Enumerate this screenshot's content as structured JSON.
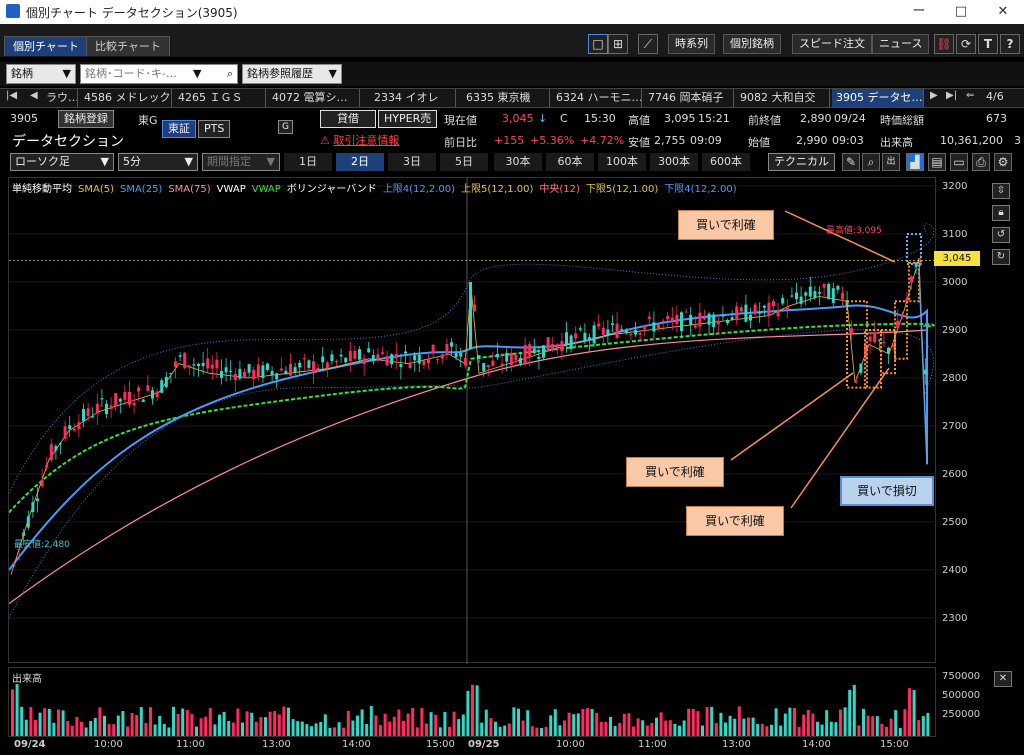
{
  "window": {
    "title": "個別チャート データセクション(3905)",
    "min": "ー",
    "max": "□",
    "close": "✕"
  },
  "tabs": {
    "main": "個別チャート",
    "compare": "比較チャート"
  },
  "toolbar": {
    "jikeiretsu": "時系列",
    "kobetsu": "個別銘柄",
    "speed": "スピード注文",
    "news": "ニュース",
    "T": "T",
    "help": "?"
  },
  "search": {
    "type": "銘柄",
    "placeholder": "銘柄･コード･キ-…",
    "history": "銘柄参照履歴"
  },
  "stocks": [
    "ラウ…",
    "4586 メドレック",
    "4265 ＩＧＳ",
    "4072 電算シ…",
    "2334 イオレ",
    "6335 東京機",
    "6324 ハーモニ…",
    "7746 岡本硝子",
    "9082 大和自交",
    "3905 データセ…"
  ],
  "stock_page": "4/6",
  "info": {
    "code": "3905",
    "register": "銘柄登録",
    "market_short": "東G",
    "name": "データセクション",
    "tosho": "東証",
    "pts": "PTS",
    "g": "G",
    "taishaku": "貸借",
    "hyper": "HYPER売",
    "caution": "取引注意情報",
    "genzai_label": "現在値",
    "genzai": "3,045",
    "arrow": "↓",
    "c": "C",
    "time": "15:30",
    "takane_label": "高値",
    "takane": "3,095",
    "takane_time": "15:21",
    "zen_label": "前終値",
    "zen": "2,890",
    "zen_date": "09/24",
    "jika_label": "時価総額",
    "jika": "673",
    "zenjitsu_label": "前日比",
    "zenjitsu": "+155",
    "pct1": "+5.36%",
    "pct2": "+4.72%",
    "yasune_label": "安値",
    "yasune": "2,755",
    "yasune_time": "09:09",
    "hajime_label": "始値",
    "hajime": "2,990",
    "hajime_time": "09:03",
    "deki_label": "出来高",
    "deki": "10,361,200",
    "deki_tail": "3"
  },
  "period": {
    "candle": "ローソク足",
    "interval": "5分",
    "range": "期間指定",
    "days": [
      "1日",
      "2日",
      "3日",
      "5日"
    ],
    "bars": [
      "30本",
      "60本",
      "100本",
      "300本",
      "600本"
    ],
    "tech": "テクニカル"
  },
  "legend": [
    {
      "t": "単純移動平均",
      "c": "#ffffff"
    },
    {
      "t": "SMA(5)",
      "c": "#e8c040"
    },
    {
      "t": "SMA(25)",
      "c": "#4a9aff"
    },
    {
      "t": "SMA(75)",
      "c": "#ff8aa0"
    },
    {
      "t": "VWAP",
      "c": "#ffffff"
    },
    {
      "t": "VWAP",
      "c": "#38e038"
    },
    {
      "t": "ボリンジャーバンド",
      "c": "#ffffff"
    },
    {
      "t": "上限4(12,2.00)",
      "c": "#4a9aff"
    },
    {
      "t": "上限5(12,1.00)",
      "c": "#e8c040"
    },
    {
      "t": "中央(12)",
      "c": "#ff7080"
    },
    {
      "t": "下限5(12,1.00)",
      "c": "#e8c040"
    },
    {
      "t": "下限4(12,2.00)",
      "c": "#4a9aff"
    }
  ],
  "yticks": [
    "3200",
    "3100",
    "3000",
    "2900",
    "2800",
    "2700",
    "2600",
    "2500",
    "2400",
    "2300"
  ],
  "current_price_tag": "3,045",
  "high_label": "最高値:3,095",
  "low_label": "最安値:2,480",
  "callouts": {
    "c1": "買いで利確",
    "c2": "買いで利確",
    "c3": "買いで利確",
    "c4": "買いで損切"
  },
  "volume": {
    "title": "出来高",
    "ticks": [
      "750000",
      "500000",
      "250000"
    ]
  },
  "xlabels": [
    "09/24",
    "10:00",
    "11:00",
    "13:00",
    "14:00",
    "15:00",
    "09/25",
    "10:00",
    "11:00",
    "13:00",
    "14:00",
    "15:00"
  ]
}
